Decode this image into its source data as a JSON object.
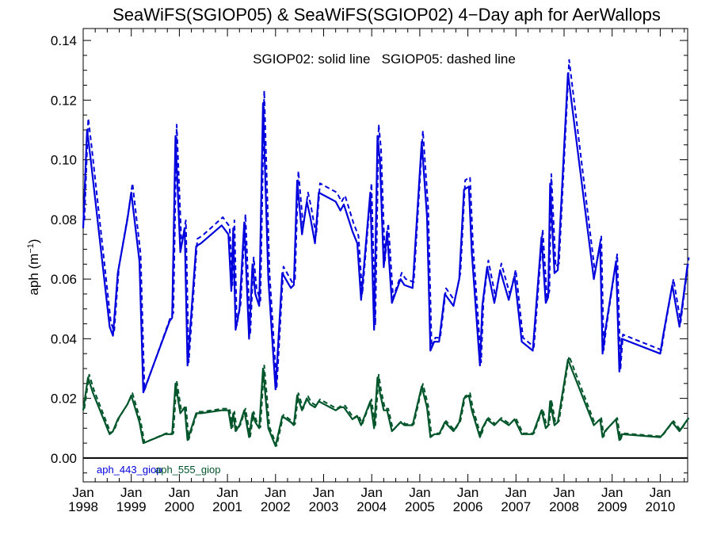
{
  "chart_data": {
    "type": "line",
    "title": "SeaWiFS(SGIOP05) & SeaWiFS(SGIOP02) 4−Day aph for AerWallops",
    "annotation": "SGIOP02: solid line   SGIOP05: dashed line",
    "ylabel_main": "aph (m",
    "ylabel_sup": "−1",
    "ylabel_close": ")",
    "xlim": [
      1998.0,
      2010.57
    ],
    "ylim": [
      -0.008,
      0.144
    ],
    "y_ticks": [
      0.0,
      0.02,
      0.04,
      0.06,
      0.08,
      0.1,
      0.12,
      0.14
    ],
    "y_tick_labels": [
      "0.00",
      "0.02",
      "0.04",
      "0.06",
      "0.08",
      "0.10",
      "0.12",
      "0.14"
    ],
    "x_ticks": [
      1998,
      1999,
      2000,
      2001,
      2002,
      2003,
      2004,
      2005,
      2006,
      2007,
      2008,
      2009,
      2010
    ],
    "x_tick_month": "Jan",
    "x_tick_years": [
      "1998",
      "1999",
      "2000",
      "2001",
      "2002",
      "2003",
      "2004",
      "2005",
      "2006",
      "2007",
      "2008",
      "2009",
      "2010"
    ],
    "zero_line": 0.0,
    "series": [
      {
        "name": "aph_443_giop",
        "color": "#0000dd",
        "style": "solid",
        "x": [
          1998.0,
          1998.08,
          1998.15,
          1998.55,
          1998.62,
          1998.72,
          1998.92,
          1999.0,
          1999.17,
          1999.25,
          1999.8,
          1999.85,
          1999.92,
          2000.02,
          2000.11,
          2000.17,
          2000.35,
          2000.45,
          2000.88,
          2001.02,
          2001.08,
          2001.12,
          2001.17,
          2001.25,
          2001.35,
          2001.45,
          2001.52,
          2001.58,
          2001.66,
          2001.74,
          2001.85,
          2002.0,
          2002.14,
          2002.32,
          2002.38,
          2002.45,
          2002.55,
          2002.65,
          2002.72,
          2002.82,
          2002.9,
          2003.25,
          2003.35,
          2003.42,
          2003.6,
          2003.7,
          2003.78,
          2003.97,
          2004.05,
          2004.12,
          2004.17,
          2004.25,
          2004.32,
          2004.42,
          2004.6,
          2004.68,
          2004.85,
          2005.04,
          2005.15,
          2005.22,
          2005.3,
          2005.4,
          2005.52,
          2005.7,
          2005.82,
          2005.92,
          2006.02,
          2006.08,
          2006.25,
          2006.3,
          2006.4,
          2006.55,
          2006.67,
          2006.85,
          2006.97,
          2007.12,
          2007.35,
          2007.53,
          2007.62,
          2007.67,
          2007.71,
          2007.8,
          2007.87,
          2008.08,
          2008.62,
          2008.75,
          2008.8,
          2008.85,
          2009.08,
          2009.15,
          2009.2,
          2010.0,
          2010.06,
          2010.25,
          2010.4,
          2010.57
        ],
        "y": [
          0.077,
          0.11,
          0.101,
          0.044,
          0.041,
          0.062,
          0.08,
          0.089,
          0.066,
          0.022,
          0.046,
          0.047,
          0.108,
          0.069,
          0.077,
          0.031,
          0.071,
          0.072,
          0.078,
          0.075,
          0.056,
          0.077,
          0.043,
          0.05,
          0.079,
          0.04,
          0.065,
          0.055,
          0.051,
          0.119,
          0.06,
          0.023,
          0.062,
          0.057,
          0.058,
          0.093,
          0.075,
          0.086,
          0.081,
          0.072,
          0.089,
          0.086,
          0.083,
          0.085,
          0.076,
          0.072,
          0.053,
          0.089,
          0.043,
          0.108,
          0.1,
          0.064,
          0.076,
          0.052,
          0.06,
          0.058,
          0.057,
          0.106,
          0.081,
          0.036,
          0.039,
          0.039,
          0.055,
          0.051,
          0.06,
          0.09,
          0.091,
          0.069,
          0.031,
          0.051,
          0.064,
          0.052,
          0.063,
          0.053,
          0.061,
          0.039,
          0.036,
          0.074,
          0.052,
          0.054,
          0.092,
          0.062,
          0.063,
          0.129,
          0.06,
          0.072,
          0.035,
          0.042,
          0.066,
          0.029,
          0.04,
          0.035,
          0.041,
          0.058,
          0.044,
          0.065
        ]
      },
      {
        "name": "aph_555_giop",
        "color": "#00552a",
        "style": "solid",
        "x": [
          1998.0,
          1998.1,
          1998.2,
          1998.55,
          1998.62,
          1998.72,
          1998.92,
          1999.0,
          1999.17,
          1999.25,
          1999.7,
          1999.85,
          1999.92,
          2000.02,
          2000.11,
          2000.17,
          2000.35,
          2000.45,
          2000.88,
          2001.02,
          2001.08,
          2001.12,
          2001.17,
          2001.25,
          2001.35,
          2001.45,
          2001.52,
          2001.58,
          2001.66,
          2001.74,
          2001.85,
          2002.0,
          2002.14,
          2002.32,
          2002.38,
          2002.45,
          2002.55,
          2002.65,
          2002.72,
          2002.82,
          2002.9,
          2003.25,
          2003.35,
          2003.42,
          2003.6,
          2003.7,
          2003.78,
          2003.97,
          2004.05,
          2004.12,
          2004.17,
          2004.25,
          2004.32,
          2004.42,
          2004.6,
          2004.68,
          2004.85,
          2005.04,
          2005.15,
          2005.22,
          2005.3,
          2005.4,
          2005.52,
          2005.7,
          2005.82,
          2005.92,
          2006.02,
          2006.08,
          2006.25,
          2006.3,
          2006.4,
          2006.55,
          2006.67,
          2006.85,
          2006.97,
          2007.12,
          2007.35,
          2007.53,
          2007.62,
          2007.67,
          2007.71,
          2007.8,
          2007.87,
          2008.08,
          2008.62,
          2008.75,
          2008.8,
          2008.85,
          2009.08,
          2009.15,
          2009.2,
          2010.0,
          2010.06,
          2010.25,
          2010.4,
          2010.57
        ],
        "y": [
          0.016,
          0.027,
          0.022,
          0.008,
          0.009,
          0.013,
          0.018,
          0.021,
          0.012,
          0.005,
          0.008,
          0.008,
          0.025,
          0.015,
          0.017,
          0.006,
          0.015,
          0.015,
          0.016,
          0.016,
          0.01,
          0.015,
          0.009,
          0.011,
          0.016,
          0.007,
          0.015,
          0.012,
          0.01,
          0.03,
          0.01,
          0.004,
          0.014,
          0.012,
          0.011,
          0.021,
          0.016,
          0.02,
          0.018,
          0.017,
          0.019,
          0.016,
          0.017,
          0.017,
          0.013,
          0.014,
          0.011,
          0.019,
          0.01,
          0.027,
          0.022,
          0.016,
          0.016,
          0.009,
          0.012,
          0.011,
          0.011,
          0.024,
          0.017,
          0.007,
          0.008,
          0.008,
          0.012,
          0.009,
          0.012,
          0.02,
          0.021,
          0.016,
          0.007,
          0.01,
          0.013,
          0.011,
          0.013,
          0.011,
          0.013,
          0.008,
          0.008,
          0.016,
          0.01,
          0.011,
          0.019,
          0.011,
          0.012,
          0.033,
          0.011,
          0.013,
          0.007,
          0.009,
          0.013,
          0.006,
          0.008,
          0.007,
          0.008,
          0.012,
          0.009,
          0.013
        ]
      }
    ]
  }
}
